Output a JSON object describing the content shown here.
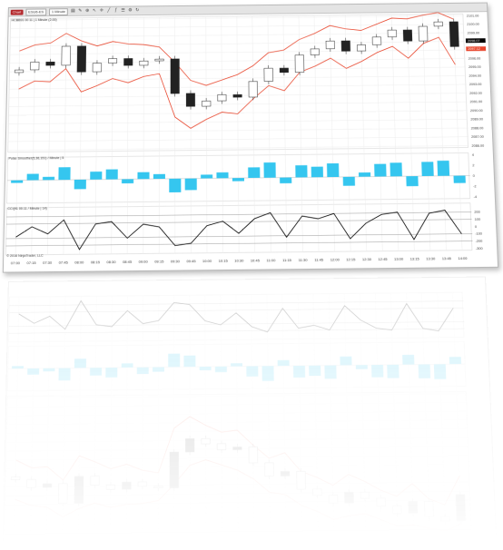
{
  "toolbar": {
    "chart_button": "Chart",
    "symbol": "ESU6-ES",
    "interval": "1 Minute"
  },
  "panes": {
    "price_title": "HCBB91 00 11 | 1 Minute (2.00)",
    "histogram_title": "Pulse Smoother(5,36,151) / Minute | 5",
    "cci_title": "CCI(91 00.11 / Minute | 14)",
    "copyright": "© 2016 NinjaTrader, LLC"
  },
  "colors": {
    "candle_up": "#ffffff",
    "candle_down": "#222222",
    "band": "#e8472e",
    "histogram": "#35c6ef",
    "cci_line": "#000000",
    "price_marker": "#000000",
    "band_marker": "#e8472e"
  },
  "chart_data": [
    {
      "type": "candlestick",
      "title": "HCBB91 00 11 | 1 Minute (2.00)",
      "x": [
        "07:00",
        "07:15",
        "07:30",
        "07:45",
        "08:00",
        "08:15",
        "08:30",
        "08:45",
        "09:00",
        "09:15",
        "09:30",
        "09:45",
        "10:00",
        "10:15",
        "10:30",
        "10:45",
        "11:00",
        "11:15",
        "11:30",
        "11:45",
        "12:00",
        "12:15",
        "12:30",
        "12:45",
        "13:00",
        "13:15",
        "13:30",
        "13:45",
        "14:00"
      ],
      "ylim": [
        2086.0,
        2101.0
      ],
      "y_ticks": [
        "2101.00",
        "2100.00",
        "2099.00",
        "2098.00",
        "2097.00",
        "2096.00",
        "2095.00",
        "2094.00",
        "2093.00",
        "2092.00",
        "2091.00",
        "2090.00",
        "2089.00",
        "2088.00",
        "2087.00",
        "2086.00"
      ],
      "close": [
        2095.2,
        2096.1,
        2095.7,
        2097.9,
        2094.9,
        2095.9,
        2096.4,
        2095.6,
        2096.1,
        2096.3,
        2092.3,
        2090.8,
        2091.4,
        2092.1,
        2091.8,
        2093.6,
        2095.1,
        2094.6,
        2096.6,
        2097.3,
        2098.2,
        2097.0,
        2097.7,
        2098.6,
        2099.4,
        2098.1,
        2099.8,
        2100.3,
        2097.4
      ],
      "band_upper": [
        2097.4,
        2098.1,
        2098.3,
        2099.4,
        2098.5,
        2097.9,
        2098.4,
        2098.1,
        2098.0,
        2097.7,
        2095.9,
        2093.8,
        2093.2,
        2093.8,
        2094.4,
        2095.4,
        2096.9,
        2097.2,
        2098.4,
        2099.1,
        2100.0,
        2099.6,
        2099.4,
        2100.1,
        2100.8,
        2100.7,
        2101.1,
        2101.4,
        2100.6
      ],
      "band_lower": [
        2093.0,
        2093.9,
        2093.8,
        2095.3,
        2092.6,
        2093.3,
        2094.1,
        2093.6,
        2094.3,
        2094.6,
        2089.6,
        2088.3,
        2089.3,
        2090.1,
        2089.9,
        2091.6,
        2093.1,
        2092.5,
        2094.6,
        2095.3,
        2096.2,
        2095.0,
        2095.8,
        2096.8,
        2097.5,
        2096.1,
        2097.8,
        2098.5,
        2095.3
      ],
      "price_marker": "2098.07",
      "band_marker": "2097.12"
    },
    {
      "type": "bar",
      "title": "Pulse Smoother(5,36,151) / Minute | 5",
      "x": [
        "07:00",
        "07:15",
        "07:30",
        "07:45",
        "08:00",
        "08:15",
        "08:30",
        "08:45",
        "09:00",
        "09:15",
        "09:30",
        "09:45",
        "10:00",
        "10:15",
        "10:30",
        "10:45",
        "11:00",
        "11:15",
        "11:30",
        "11:45",
        "12:00",
        "12:15",
        "12:30",
        "12:45",
        "13:00",
        "13:15",
        "13:30",
        "13:45",
        "14:00"
      ],
      "values": [
        -0.5,
        1.2,
        0.6,
        2.4,
        -1.8,
        1.5,
        1.9,
        -0.8,
        1.3,
        0.9,
        -2.6,
        -2.2,
        0.7,
        1.1,
        -0.6,
        2.0,
        2.9,
        -1.1,
        2.3,
        2.0,
        2.6,
        -1.7,
        0.8,
        2.4,
        2.6,
        -1.9,
        2.7,
        2.9,
        -1.4
      ],
      "ylim": [
        -4,
        4
      ],
      "y_ticks": [
        "4",
        "2",
        "0",
        "-2",
        "-4"
      ]
    },
    {
      "type": "line",
      "title": "CCI(91 00.11 / Minute | 14)",
      "x": [
        "07:00",
        "07:15",
        "07:30",
        "07:45",
        "08:00",
        "08:15",
        "08:30",
        "08:45",
        "09:00",
        "09:15",
        "09:30",
        "09:45",
        "10:00",
        "10:15",
        "10:30",
        "10:45",
        "11:00",
        "11:15",
        "11:30",
        "11:45",
        "12:00",
        "12:15",
        "12:30",
        "12:45",
        "13:00",
        "13:15",
        "13:30",
        "13:45",
        "14:00"
      ],
      "values": [
        -80,
        60,
        -40,
        150,
        -260,
        90,
        120,
        -110,
        80,
        40,
        -220,
        -190,
        50,
        110,
        -60,
        140,
        220,
        -120,
        170,
        130,
        200,
        -150,
        60,
        180,
        210,
        -170,
        190,
        230,
        -100
      ],
      "ylim": [
        -300,
        300
      ],
      "y_ticks": [
        "200",
        "100",
        "0",
        "-100",
        "-200",
        "-300"
      ],
      "levels": [
        200,
        100,
        -100,
        -200
      ]
    }
  ]
}
